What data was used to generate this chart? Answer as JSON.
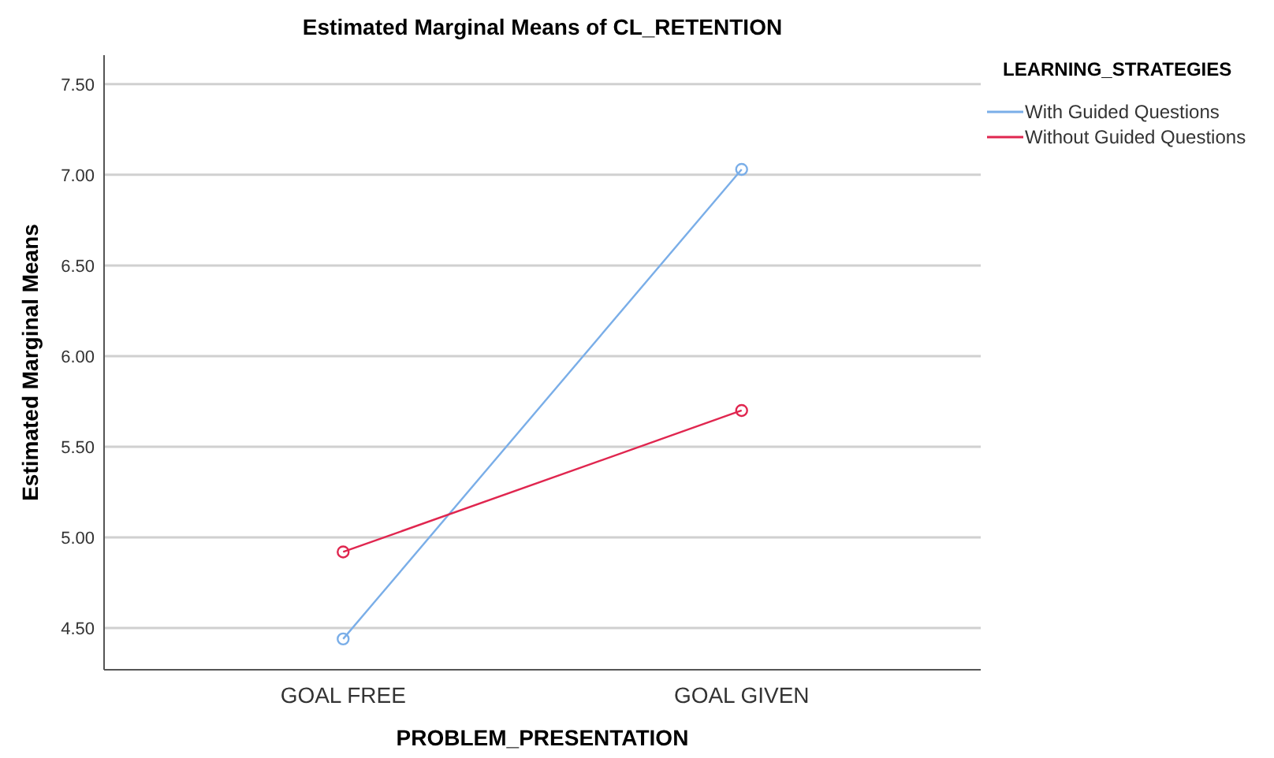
{
  "chart_data": {
    "type": "line",
    "title": "Estimated Marginal Means of CL_RETENTION",
    "xlabel": "PROBLEM_PRESENTATION",
    "ylabel": "Estimated Marginal Means",
    "legend_title": "LEARNING_STRATEGIES",
    "categories": [
      "GOAL FREE",
      "GOAL GIVEN"
    ],
    "series": [
      {
        "name": "With Guided Questions",
        "color": "#7aaee8",
        "values": [
          4.44,
          7.03
        ]
      },
      {
        "name": "Without Guided Questions",
        "color": "#e0264f",
        "values": [
          4.92,
          5.7
        ]
      }
    ],
    "ylim": [
      4.27,
      7.66
    ],
    "yticks": [
      {
        "value": 4.5,
        "label": "4.50"
      },
      {
        "value": 5,
        "label": "5.00"
      },
      {
        "value": 5.5,
        "label": "5.50"
      },
      {
        "value": 6,
        "label": "6.00"
      },
      {
        "value": 6.5,
        "label": "6.50"
      },
      {
        "value": 7,
        "label": "7.00"
      },
      {
        "value": 7.5,
        "label": "7.50"
      }
    ],
    "grid": "y",
    "legend": "top right",
    "marker": "circle",
    "line_style": "solid"
  }
}
